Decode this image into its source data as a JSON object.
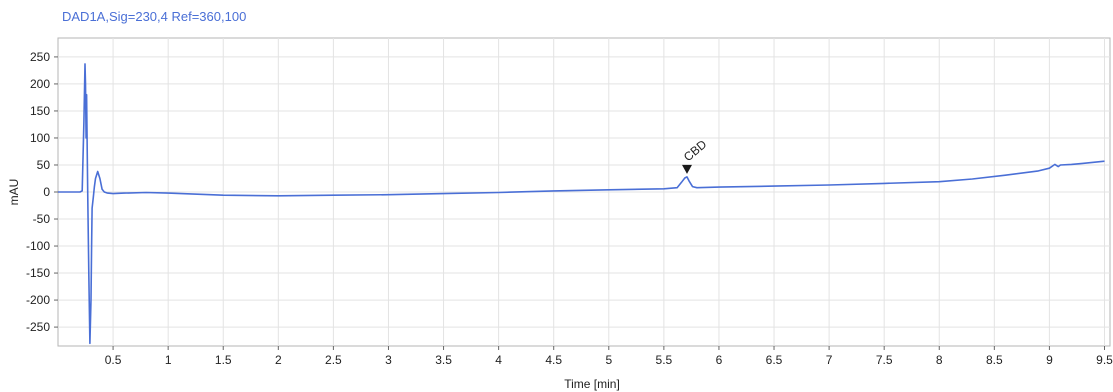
{
  "header": {
    "signal_title": "DAD1A,Sig=230,4  Ref=360,100"
  },
  "chart_data": {
    "type": "line",
    "title": "",
    "xlabel": "Time [min]",
    "ylabel": "mAU",
    "xlim": [
      0,
      9.55
    ],
    "ylim": [
      -285,
      285
    ],
    "grid": true,
    "x_ticks": [
      "0.5",
      "1",
      "1.5",
      "2",
      "2.5",
      "3",
      "3.5",
      "4",
      "4.5",
      "5",
      "5.5",
      "6",
      "6.5",
      "7",
      "7.5",
      "8",
      "8.5",
      "9",
      "9.5"
    ],
    "y_ticks": [
      "250",
      "200",
      "150",
      "100",
      "50",
      "0",
      "-50",
      "-100",
      "-150",
      "-200",
      "-250"
    ],
    "series_color": "#4a6fd6",
    "series": [
      {
        "x": [
          0.0,
          0.2,
          0.22,
          0.235,
          0.245,
          0.25,
          0.255,
          0.26,
          0.265,
          0.27,
          0.28,
          0.29,
          0.3,
          0.305,
          0.31,
          0.32,
          0.33,
          0.34,
          0.36,
          0.38,
          0.4,
          0.42,
          0.45,
          0.5,
          0.6,
          0.8,
          1.0,
          1.5,
          2.0,
          2.5,
          3.0,
          3.5,
          4.0,
          4.5,
          5.0,
          5.5,
          5.62,
          5.66,
          5.69,
          5.71,
          5.73,
          5.76,
          5.8,
          6.0,
          6.5,
          7.0,
          7.5,
          8.0,
          8.3,
          8.6,
          8.9,
          9.0,
          9.05,
          9.08,
          9.1,
          9.2,
          9.3,
          9.4,
          9.5
        ],
        "y": [
          0,
          0,
          2,
          130,
          237,
          200,
          100,
          180,
          80,
          0,
          -150,
          -280,
          -200,
          -100,
          -30,
          -10,
          10,
          25,
          38,
          25,
          5,
          0,
          -2,
          -3,
          -2,
          -1,
          -2,
          -6,
          -7,
          -6,
          -5,
          -3,
          -1,
          2,
          4,
          6,
          8,
          18,
          26,
          28,
          20,
          10,
          8,
          9,
          11,
          13,
          16,
          19,
          24,
          31,
          39,
          44,
          51,
          47,
          50,
          51,
          53,
          55,
          57
        ]
      }
    ],
    "annotations": [
      {
        "label": "CBD",
        "x": 5.71,
        "y": 28,
        "marker": "triangle-down"
      }
    ]
  }
}
